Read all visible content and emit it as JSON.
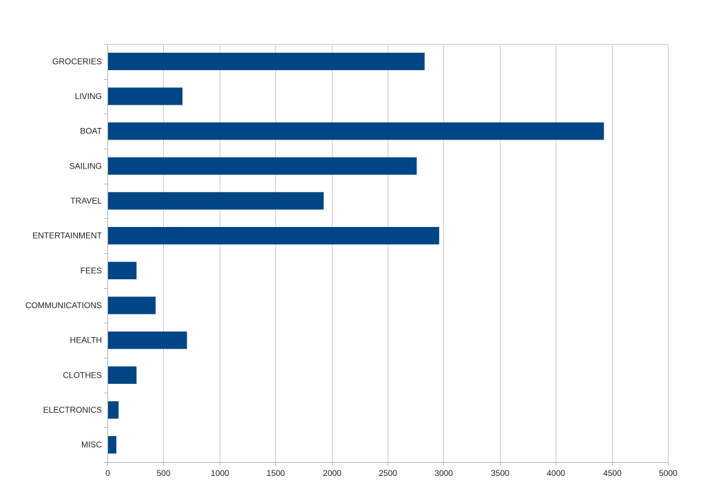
{
  "chart_data": {
    "type": "bar",
    "orientation": "horizontal",
    "categories": [
      "GROCERIES",
      "LIVING",
      "BOAT",
      "SAILING",
      "TRAVEL",
      "ENTERTAINMENT",
      "FEES",
      "COMMUNICATIONS",
      "HEALTH",
      "CLOTHES",
      "ELECTRONICS",
      "MISC"
    ],
    "values": [
      2830,
      670,
      4430,
      2760,
      1930,
      2960,
      260,
      430,
      710,
      260,
      100,
      80
    ],
    "xlim": [
      0,
      5000
    ],
    "x_ticks": [
      0,
      500,
      1000,
      1500,
      2000,
      2500,
      3000,
      3500,
      4000,
      4500,
      5000
    ],
    "x_tick_labels": [
      "0",
      "500",
      "1000",
      "1500",
      "2000",
      "2500",
      "3000",
      "3500",
      "4000",
      "4500",
      "5000"
    ],
    "grid": "vertical",
    "legend": "none",
    "colors": {
      "bar": "#004586",
      "grid": "#c8c8c8",
      "axis": "#b0b0b0"
    }
  }
}
